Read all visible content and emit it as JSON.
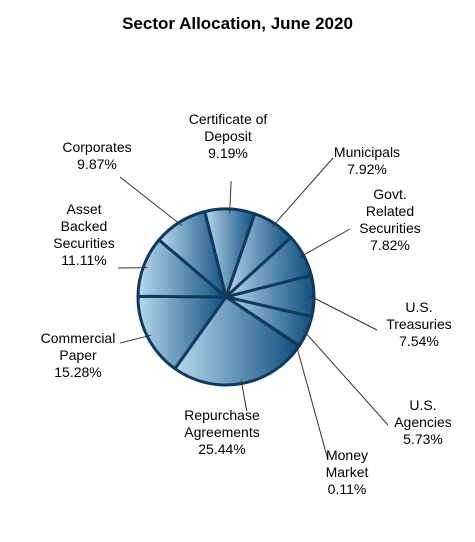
{
  "chart_data": {
    "type": "pie",
    "title": "Sector Allocation, June 2020",
    "slices": [
      {
        "label": [
          "Certificate of",
          "Deposit"
        ],
        "value": 9.19,
        "display": "9.19%"
      },
      {
        "label": [
          "Municipals"
        ],
        "value": 7.92,
        "display": "7.92%"
      },
      {
        "label": [
          "Govt.",
          "Related",
          "Securities"
        ],
        "value": 7.82,
        "display": "7.82%"
      },
      {
        "label": [
          "U.S.",
          "Treasuries"
        ],
        "value": 7.54,
        "display": "7.54%"
      },
      {
        "label": [
          "U.S.",
          "Agencies"
        ],
        "value": 5.73,
        "display": "5.73%"
      },
      {
        "label": [
          "Money",
          "Market"
        ],
        "value": 0.11,
        "display": "0.11%"
      },
      {
        "label": [
          "Repurchase",
          "Agreements"
        ],
        "value": 25.44,
        "display": "25.44%"
      },
      {
        "label": [
          "Commercial",
          "Paper"
        ],
        "value": 15.28,
        "display": "15.28%"
      },
      {
        "label": [
          "Asset",
          "Backed",
          "Securities"
        ],
        "value": 11.11,
        "display": "11.11%"
      },
      {
        "label": [
          "Corporates"
        ],
        "value": 9.87,
        "display": "9.87%"
      }
    ],
    "start_angle_deg": -14,
    "colors": {
      "dark": "#0f4e7d",
      "light": "#b6d8ee",
      "edge": "#0f3a5e"
    }
  }
}
